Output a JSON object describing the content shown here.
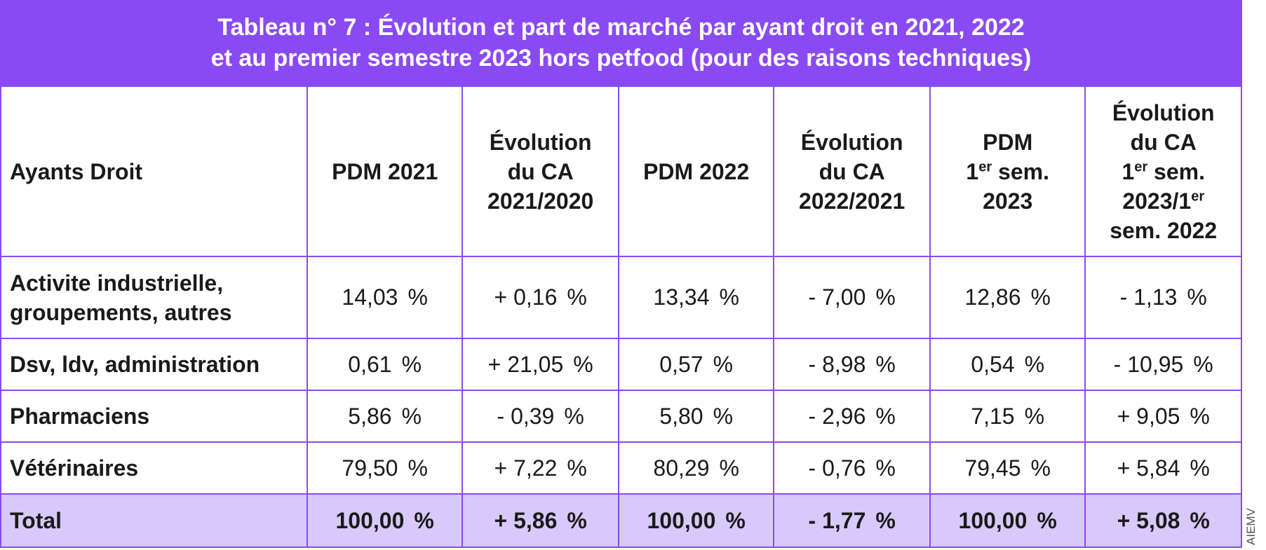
{
  "title": {
    "line1": "Tableau n° 7 : Évolution et part de marché par ayant droit en 2021, 2022",
    "line2": "et au premier semestre 2023 hors petfood (pour des raisons techniques)"
  },
  "headers": {
    "col0": "Ayants Droit",
    "col1": "PDM 2021",
    "col2": {
      "l1": "Évolution",
      "l2": "du CA",
      "l3": "2021/2020"
    },
    "col3": "PDM 2022",
    "col4": {
      "l1": "Évolution",
      "l2": "du CA",
      "l3": "2022/2021"
    },
    "col5": {
      "l1": "PDM",
      "l2a": "1",
      "l2sup": "er",
      "l2b": " sem.",
      "l3": "2023"
    },
    "col6": {
      "l1": "Évolution",
      "l2": "du CA",
      "l3a": "1",
      "l3sup": "er",
      "l3b": " sem.",
      "l4a": "2023/1",
      "l4sup": "er",
      "l5": "sem. 2022"
    }
  },
  "percent_sign": "%",
  "rows": [
    {
      "label_l1": "Activite industrielle,",
      "label_l2": "groupements, autres",
      "values": [
        "14,03",
        "+ 0,16",
        "13,34",
        "- 7,00",
        "12,86",
        "- 1,13"
      ]
    },
    {
      "label_l1": "Dsv, ldv, administration",
      "label_l2": "",
      "values": [
        "0,61",
        "+ 21,05",
        "0,57",
        "- 8,98",
        "0,54",
        "- 10,95"
      ]
    },
    {
      "label_l1": "Pharmaciens",
      "label_l2": "",
      "values": [
        "5,86",
        "- 0,39",
        "5,80",
        "- 2,96",
        "7,15",
        "+ 9,05"
      ]
    },
    {
      "label_l1": "Vétérinaires",
      "label_l2": "",
      "values": [
        "79,50",
        "+ 7,22",
        "80,29",
        "- 0,76",
        "79,45",
        "+ 5,84"
      ]
    }
  ],
  "total": {
    "label": "Total",
    "values": [
      "100,00",
      "+ 5,86",
      "100,00",
      "- 1,77",
      "100,00",
      "+ 5,08"
    ]
  },
  "credit": "AIEMV",
  "colors": {
    "accent": "#8a4af3",
    "total_row": "#d8c9fb",
    "title_text": "#ffffff"
  }
}
